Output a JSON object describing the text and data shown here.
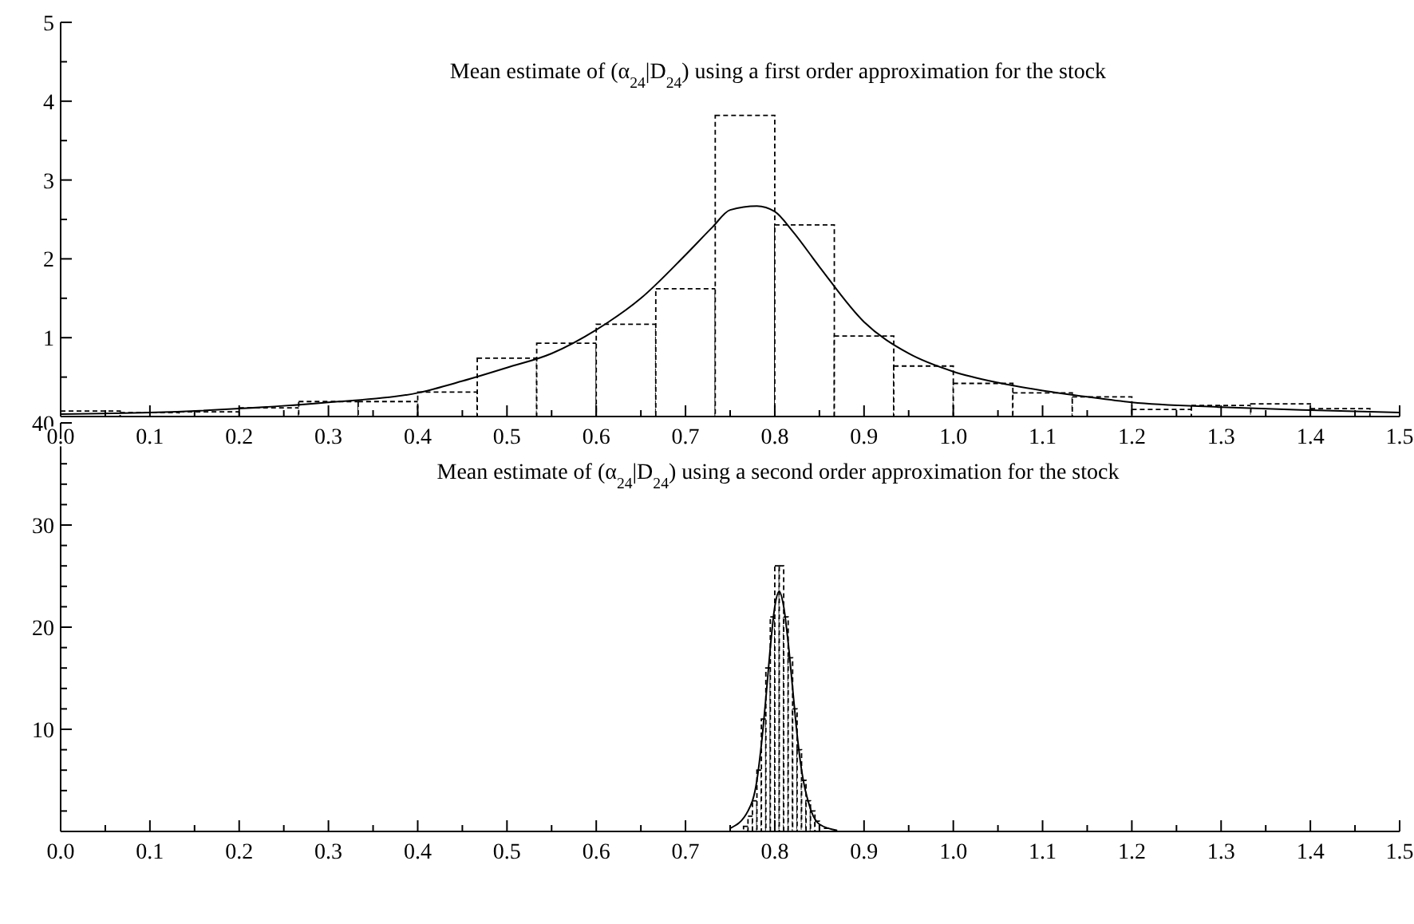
{
  "chart_data": [
    {
      "type": "histogram",
      "title": "Mean estimate of (α$_{24}$|D$_{24}$) using a first order approximation for the stock",
      "xlim": [
        0,
        1.5
      ],
      "ylim": [
        0,
        5
      ],
      "xticks": [
        {
          "value": 0,
          "label": "0.0"
        },
        {
          "value": 0.05,
          "label": null
        },
        {
          "value": 0.1,
          "label": "0.1"
        },
        {
          "value": 0.15,
          "label": null
        },
        {
          "value": 0.2,
          "label": "0.2"
        },
        {
          "value": 0.25,
          "label": null
        },
        {
          "value": 0.3,
          "label": "0.3"
        },
        {
          "value": 0.35,
          "label": null
        },
        {
          "value": 0.4,
          "label": "0.4"
        },
        {
          "value": 0.45,
          "label": null
        },
        {
          "value": 0.5,
          "label": "0.5"
        },
        {
          "value": 0.55,
          "label": null
        },
        {
          "value": 0.6,
          "label": "0.6"
        },
        {
          "value": 0.65,
          "label": null
        },
        {
          "value": 0.7,
          "label": "0.7"
        },
        {
          "value": 0.75,
          "label": null
        },
        {
          "value": 0.8,
          "label": "0.8"
        },
        {
          "value": 0.85,
          "label": null
        },
        {
          "value": 0.9,
          "label": "0.9"
        },
        {
          "value": 0.95,
          "label": null
        },
        {
          "value": 1,
          "label": "1.0"
        },
        {
          "value": 1.05,
          "label": null
        },
        {
          "value": 1.1,
          "label": "1.1"
        },
        {
          "value": 1.15,
          "label": null
        },
        {
          "value": 1.2,
          "label": "1.2"
        },
        {
          "value": 1.25,
          "label": null
        },
        {
          "value": 1.3,
          "label": "1.3"
        },
        {
          "value": 1.35,
          "label": null
        },
        {
          "value": 1.4,
          "label": "1.4"
        },
        {
          "value": 1.45,
          "label": null
        },
        {
          "value": 1.5,
          "label": "1.5"
        }
      ],
      "yticks": [
        {
          "value": 0.5,
          "label": null
        },
        1,
        {
          "value": 1.5,
          "label": null
        },
        2,
        {
          "value": 2.5,
          "label": null
        },
        3,
        {
          "value": 3.5,
          "label": null
        },
        4,
        {
          "value": 4.5,
          "label": null
        },
        5
      ],
      "series": [
        {
          "color": "#000000",
          "line_style": "dashed",
          "bins": [
            0,
            0.0667,
            0.1333,
            0.2,
            0.2667,
            0.3333,
            0.4,
            0.4667,
            0.5333,
            0.6,
            0.6667,
            0.7333,
            0.8,
            0.8667,
            0.9333,
            1,
            1.0667,
            1.1333,
            1.2,
            1.2667,
            1.3333,
            1.4,
            1.4667
          ],
          "values": [
            0.07,
            0.05,
            0.06,
            0.11,
            0.19,
            0.19,
            0.31,
            0.74,
            0.93,
            1.17,
            1.62,
            3.82,
            2.43,
            1.02,
            0.64,
            0.42,
            0.3,
            0.25,
            0.09,
            0.14,
            0.16,
            0.1
          ]
        },
        {
          "type": "line",
          "color": "#000000",
          "line_style": "solid",
          "x": [
            0,
            0.1,
            0.2,
            0.3,
            0.4,
            0.45,
            0.5,
            0.55,
            0.6,
            0.65,
            0.7,
            0.73,
            0.75,
            0.78,
            0.8,
            0.82,
            0.85,
            0.9,
            0.95,
            1,
            1.05,
            1.1,
            1.15,
            1.2,
            1.3,
            1.4,
            1.5
          ],
          "values": [
            0.03,
            0.05,
            0.1,
            0.18,
            0.3,
            0.45,
            0.62,
            0.8,
            1.1,
            1.5,
            2.05,
            2.4,
            2.62,
            2.67,
            2.6,
            2.35,
            1.9,
            1.2,
            0.8,
            0.57,
            0.43,
            0.33,
            0.25,
            0.18,
            0.12,
            0.08,
            0.05
          ]
        }
      ]
    },
    {
      "type": "histogram",
      "title": "Mean estimate of (α$_{24}$|D$_{24}$) using a second order approximation for the stock",
      "xlim": [
        0,
        1.5
      ],
      "ylim": [
        0,
        40
      ],
      "xticks": [
        {
          "value": 0,
          "label": "0.0"
        },
        {
          "value": 0.05,
          "label": null
        },
        {
          "value": 0.1,
          "label": "0.1"
        },
        {
          "value": 0.15,
          "label": null
        },
        {
          "value": 0.2,
          "label": "0.2"
        },
        {
          "value": 0.25,
          "label": null
        },
        {
          "value": 0.3,
          "label": "0.3"
        },
        {
          "value": 0.35,
          "label": null
        },
        {
          "value": 0.4,
          "label": "0.4"
        },
        {
          "value": 0.45,
          "label": null
        },
        {
          "value": 0.5,
          "label": "0.5"
        },
        {
          "value": 0.55,
          "label": null
        },
        {
          "value": 0.6,
          "label": "0.6"
        },
        {
          "value": 0.65,
          "label": null
        },
        {
          "value": 0.7,
          "label": "0.7"
        },
        {
          "value": 0.75,
          "label": null
        },
        {
          "value": 0.8,
          "label": "0.8"
        },
        {
          "value": 0.85,
          "label": null
        },
        {
          "value": 0.9,
          "label": "0.9"
        },
        {
          "value": 0.95,
          "label": null
        },
        {
          "value": 1,
          "label": "1.0"
        },
        {
          "value": 1.05,
          "label": null
        },
        {
          "value": 1.1,
          "label": "1.1"
        },
        {
          "value": 1.15,
          "label": null
        },
        {
          "value": 1.2,
          "label": "1.2"
        },
        {
          "value": 1.25,
          "label": null
        },
        {
          "value": 1.3,
          "label": "1.3"
        },
        {
          "value": 1.35,
          "label": null
        },
        {
          "value": 1.4,
          "label": "1.4"
        },
        {
          "value": 1.45,
          "label": null
        },
        {
          "value": 1.5,
          "label": "1.5"
        }
      ],
      "yticks": [
        {
          "value": 2,
          "label": null
        },
        {
          "value": 4,
          "label": null
        },
        {
          "value": 6,
          "label": null
        },
        {
          "value": 8,
          "label": null
        },
        10,
        {
          "value": 12,
          "label": null
        },
        {
          "value": 14,
          "label": null
        },
        {
          "value": 16,
          "label": null
        },
        {
          "value": 18,
          "label": null
        },
        20,
        {
          "value": 22,
          "label": null
        },
        {
          "value": 24,
          "label": null
        },
        {
          "value": 26,
          "label": null
        },
        {
          "value": 28,
          "label": null
        },
        30,
        {
          "value": 32,
          "label": null
        },
        {
          "value": 34,
          "label": null
        },
        {
          "value": 36,
          "label": null
        },
        {
          "value": 38,
          "label": null
        },
        40
      ],
      "series": [
        {
          "color": "#000000",
          "line_style": "dashed",
          "bins": [
            0.765,
            0.77,
            0.775,
            0.78,
            0.785,
            0.79,
            0.795,
            0.8,
            0.805,
            0.81,
            0.815,
            0.82,
            0.825,
            0.83,
            0.835,
            0.84,
            0.845,
            0.85,
            0.855,
            0.86
          ],
          "values": [
            0.5,
            1.5,
            3,
            6,
            11,
            16,
            21,
            26,
            26,
            21,
            17,
            12,
            8,
            5,
            3,
            2,
            1,
            null,
            0.3
          ]
        },
        {
          "type": "line",
          "color": "#000000",
          "line_style": "solid",
          "x": [
            0.75,
            0.77,
            0.78,
            0.785,
            0.79,
            0.795,
            0.8,
            0.805,
            0.81,
            0.815,
            0.82,
            0.825,
            0.83,
            0.84,
            0.85,
            0.87
          ],
          "values": [
            0.3,
            2,
            5,
            8.5,
            13,
            18,
            22,
            23.5,
            22,
            18.5,
            14,
            9.5,
            6,
            2.2,
            0.7,
            0.1
          ]
        }
      ]
    }
  ]
}
